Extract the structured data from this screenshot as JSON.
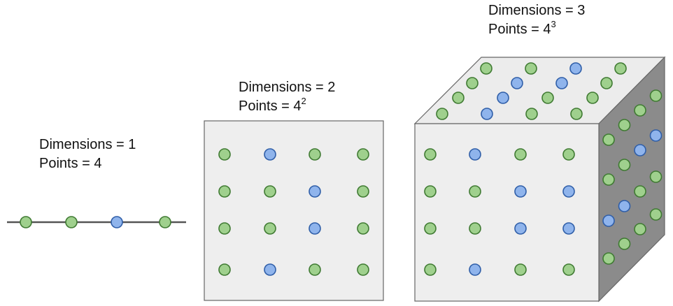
{
  "colors": {
    "green_fill": "#9fd08d",
    "green_stroke": "#3f7a32",
    "blue_fill": "#8fb4ec",
    "blue_stroke": "#2f5ea8",
    "line": "#555555",
    "face_front": "#eeeeee",
    "face_top": "#ececec",
    "face_side": "#8b8b8b",
    "panel_stroke": "#666666"
  },
  "panels": {
    "one_d": {
      "dimensions_label": "Dimensions = 1",
      "points_label": "Points = 4",
      "points": [
        "green",
        "green",
        "blue",
        "green"
      ]
    },
    "two_d": {
      "dimensions_label": "Dimensions = 2",
      "points_base": "Points = 4",
      "points_exponent": "2",
      "grid": [
        [
          "green",
          "blue",
          "green",
          "green"
        ],
        [
          "green",
          "green",
          "blue",
          "green"
        ],
        [
          "green",
          "green",
          "blue",
          "green"
        ],
        [
          "green",
          "blue",
          "green",
          "green"
        ]
      ]
    },
    "three_d": {
      "dimensions_label": "Dimensions = 3",
      "points_base": "Points = 4",
      "points_exponent": "3",
      "front_grid": [
        [
          "green",
          "blue",
          "green",
          "green"
        ],
        [
          "green",
          "green",
          "blue",
          "blue"
        ],
        [
          "green",
          "green",
          "blue",
          "blue"
        ],
        [
          "green",
          "blue",
          "green",
          "green"
        ]
      ],
      "top_grid": [
        [
          "green",
          "green",
          "blue",
          "green"
        ],
        [
          "green",
          "blue",
          "blue",
          "green"
        ],
        [
          "green",
          "blue",
          "green",
          "green"
        ],
        [
          "green",
          "blue",
          "green",
          "green"
        ]
      ],
      "side_grid": [
        [
          "green",
          "green",
          "green",
          "green"
        ],
        [
          "green",
          "green",
          "blue",
          "blue"
        ],
        [
          "blue",
          "blue",
          "green",
          "green"
        ],
        [
          "green",
          "green",
          "green",
          "green"
        ]
      ]
    }
  }
}
